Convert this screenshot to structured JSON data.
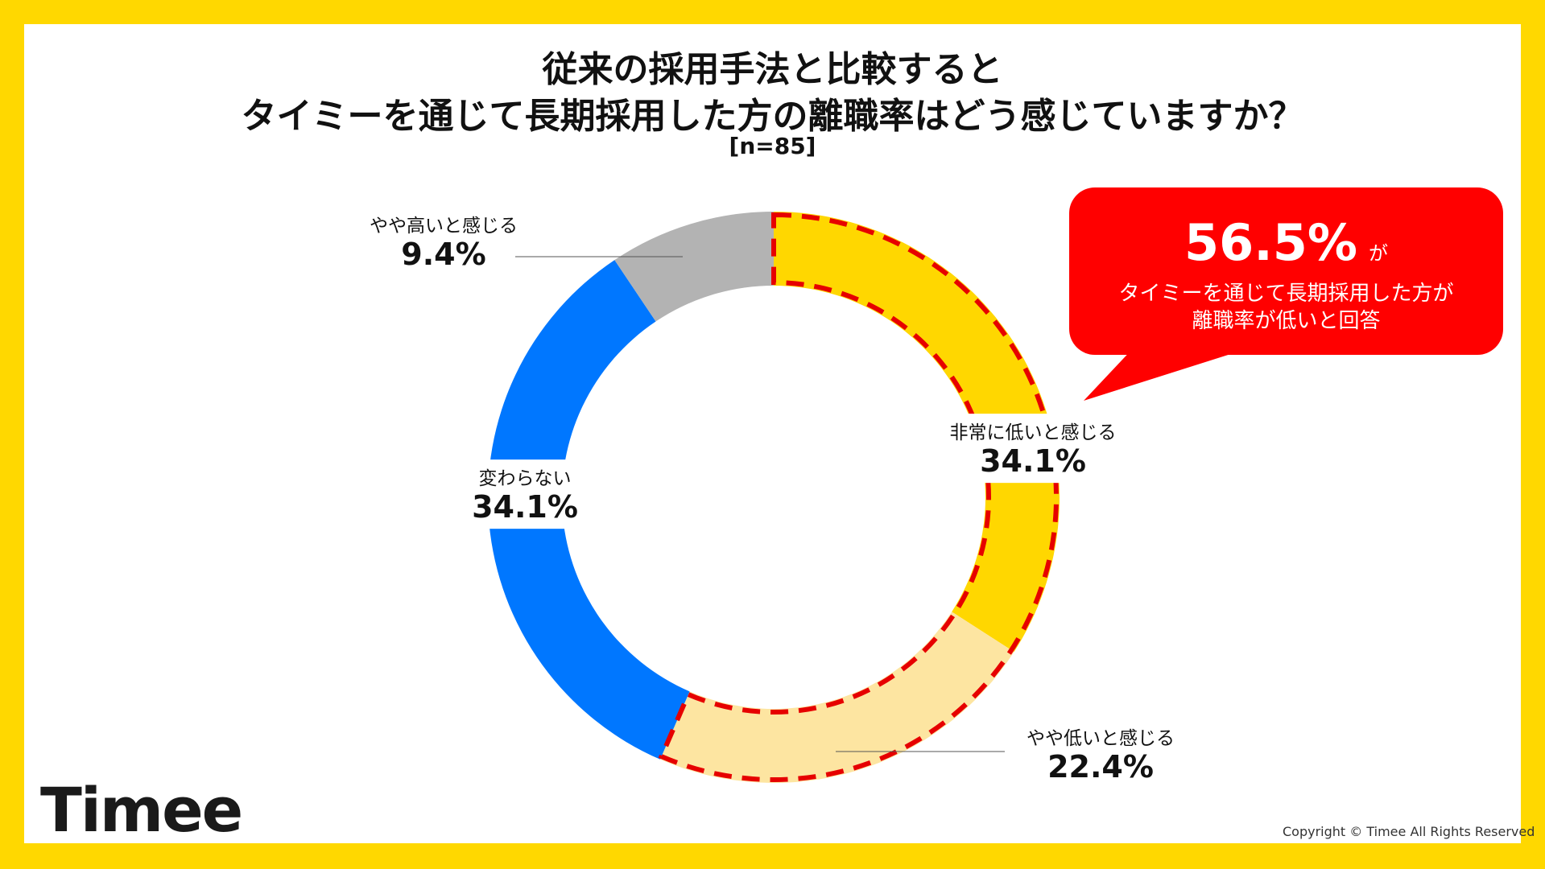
{
  "title": {
    "line1": "従来の採用手法と比較すると",
    "line2": "タイミーを通じて長期採用した方の離職率はどう感じていますか？",
    "sample": "[n=85]"
  },
  "chart_data": {
    "type": "pie",
    "variant": "donut",
    "categories": [
      "非常に低いと感じる",
      "やや低いと感じる",
      "変わらない",
      "やや高いと感じる"
    ],
    "values": [
      34.1,
      22.4,
      34.1,
      9.4
    ],
    "labels": [
      "34.1%",
      "22.4%",
      "34.1%",
      "9.4%"
    ],
    "colors": [
      "#FFD700",
      "#FDE5A1",
      "#0077FF",
      "#B3B3B3"
    ],
    "highlight": {
      "categories": [
        "非常に低いと感じる",
        "やや低いと感じる"
      ],
      "outline_color": "#E60000",
      "outline_style": "dashed"
    },
    "start": "top",
    "direction": "clockwise"
  },
  "callout": {
    "value": "56.5%",
    "suffix": "が",
    "line1": "タイミーを通じて長期採用した方が",
    "line2": "離職率が低いと回答",
    "color": "#FF0000"
  },
  "footer": {
    "logo": "Timee",
    "copyright": "Copyright © Timee All Rights Reserved"
  }
}
